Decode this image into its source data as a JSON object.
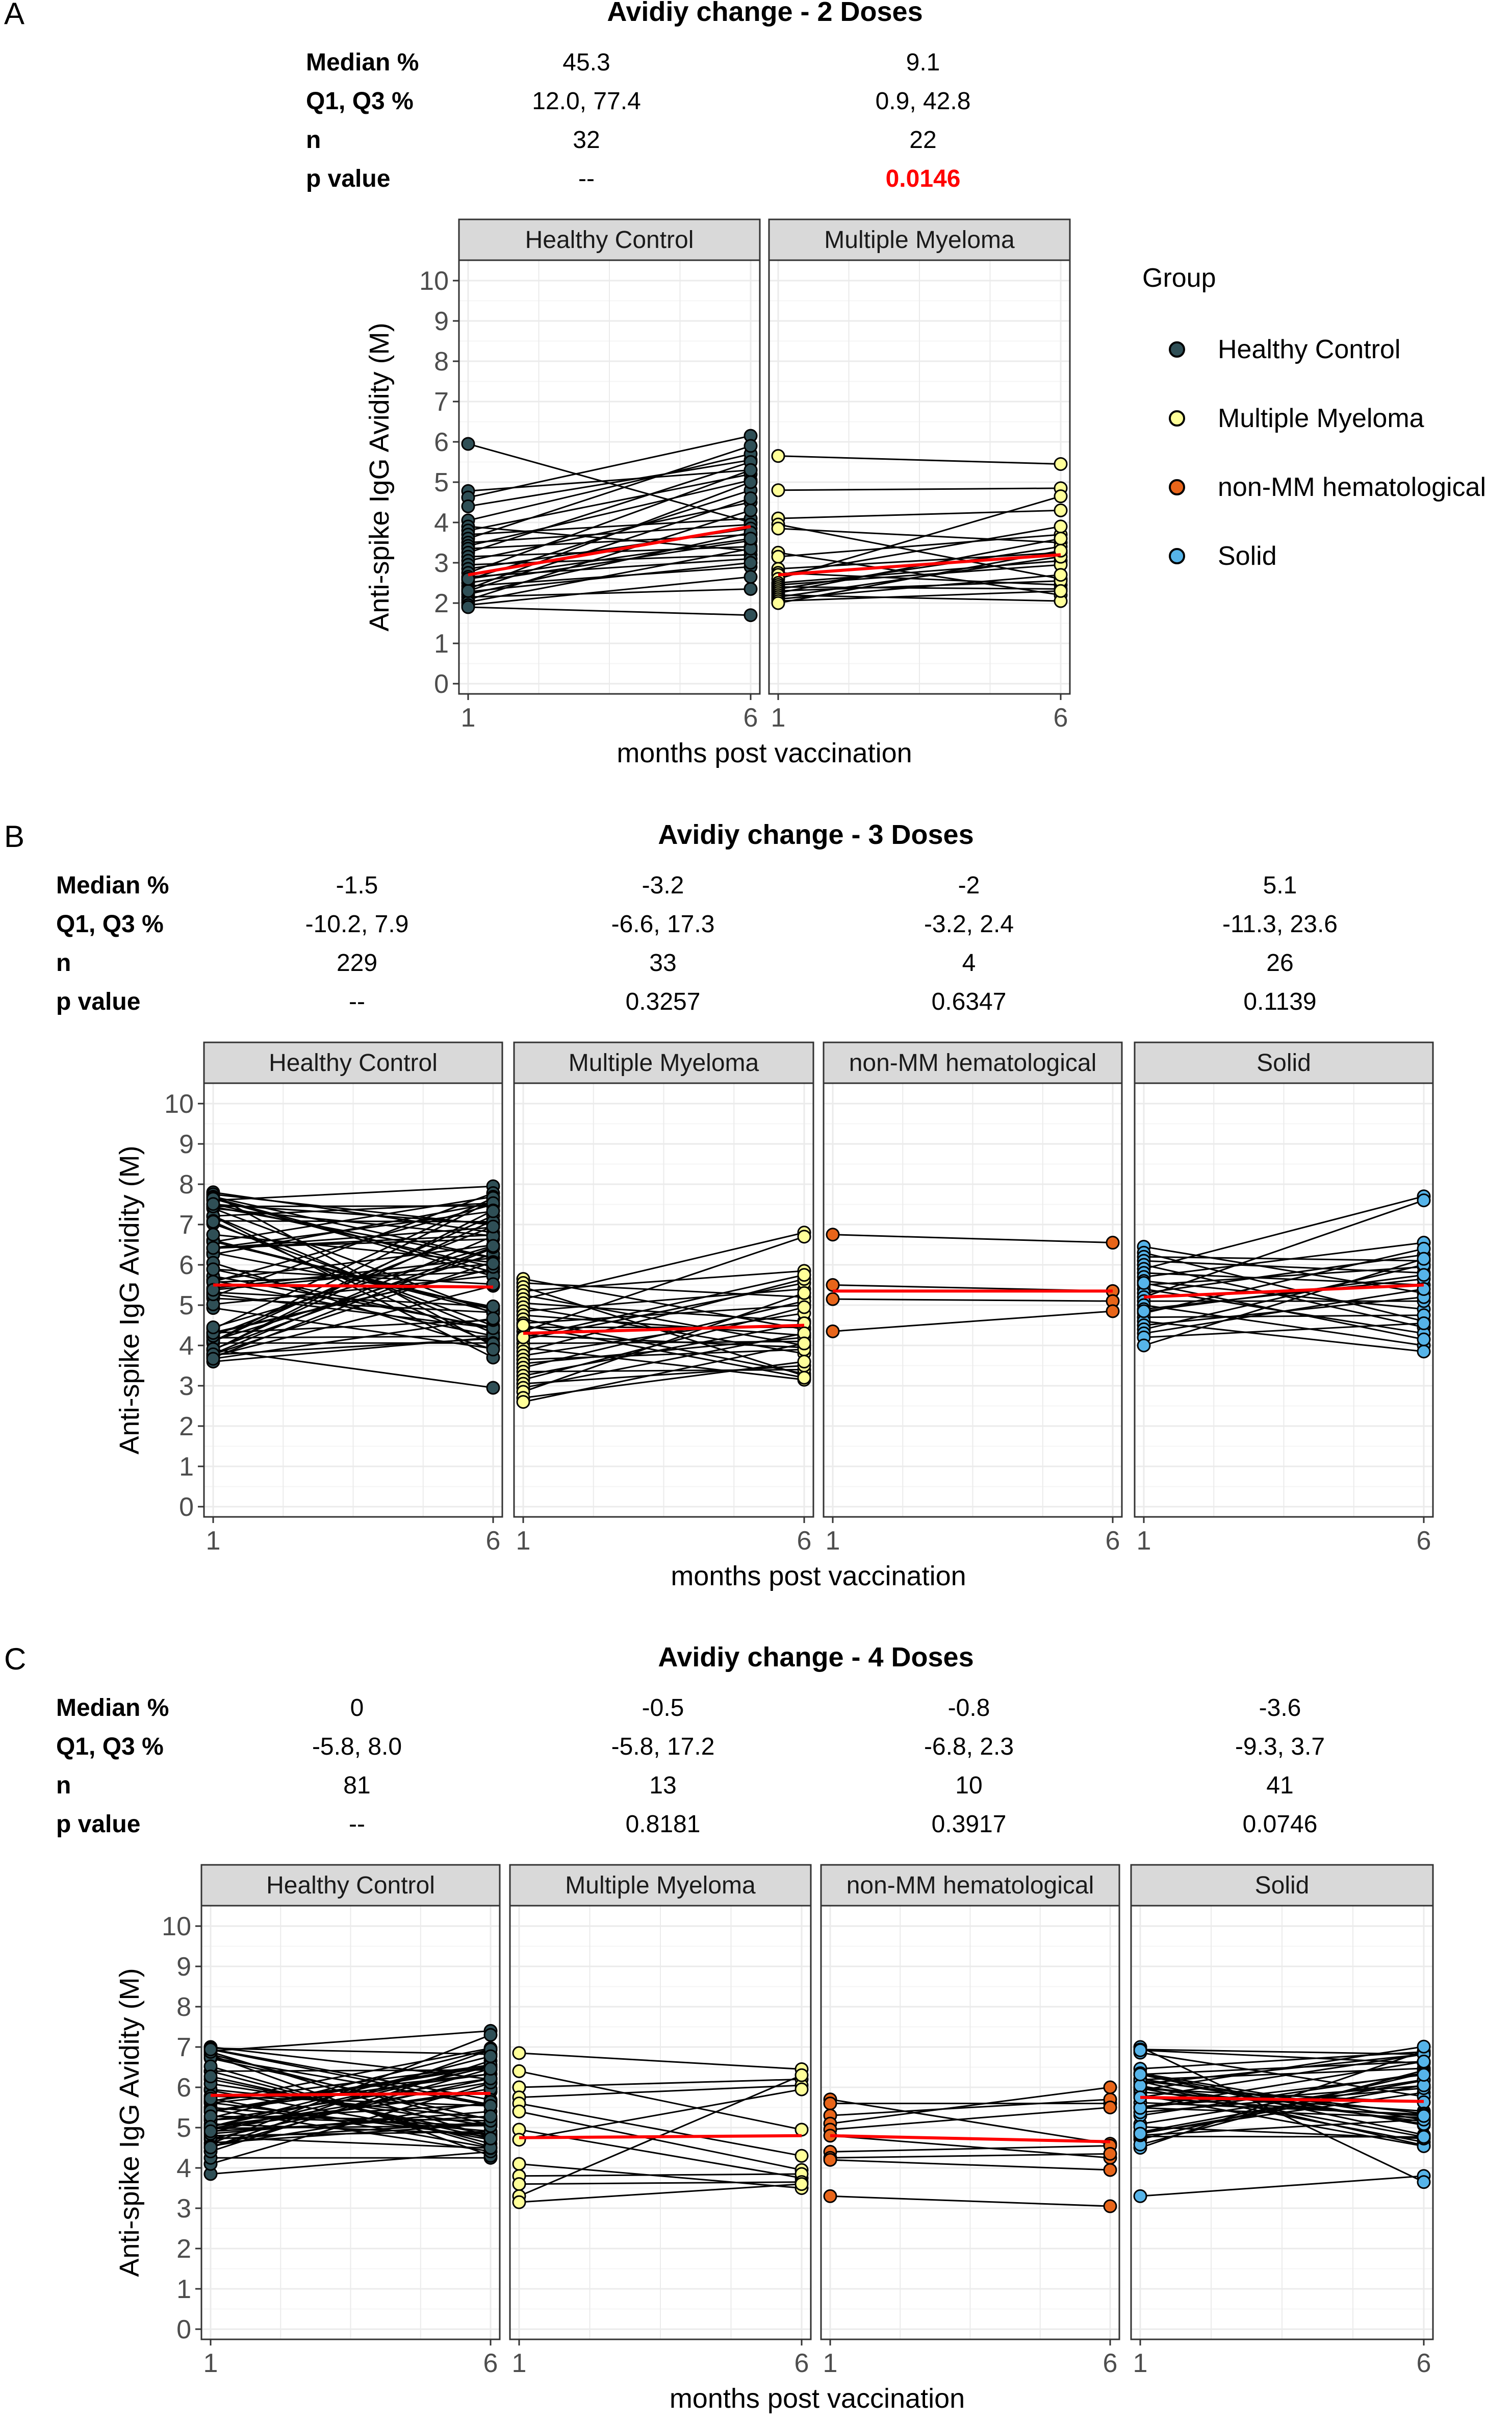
{
  "figure": {
    "legend": {
      "title": "Group",
      "items": [
        {
          "label": "Healthy Control",
          "color": "#2f4f56"
        },
        {
          "label": "Multiple Myeloma",
          "color": "#ffff99"
        },
        {
          "label": "non-MM hematological",
          "color": "#e8651a"
        },
        {
          "label": "Solid",
          "color": "#56b4e9"
        }
      ]
    },
    "table_row_labels": [
      "Median %",
      "Q1, Q3 %",
      "n",
      "p value"
    ]
  },
  "chart_data": [
    {
      "letter": "A",
      "type": "line",
      "title": "Avidiy change - 2 Doses",
      "xlabel": "months post vaccination",
      "ylabel": "Anti-spike IgG Avidity (M)",
      "x": [
        1,
        6
      ],
      "ylim": [
        0,
        10
      ],
      "yticks": [
        0,
        1,
        2,
        3,
        4,
        5,
        6,
        7,
        8,
        9,
        10
      ],
      "groups": [
        {
          "name": "Healthy Control",
          "color": "#2f4f56",
          "median": "45.3",
          "q1q3": "12.0, 77.4",
          "n": "32",
          "p": "--",
          "significant": false,
          "pairs": [
            [
              5.95,
              4.0
            ],
            [
              4.78,
              5.3
            ],
            [
              4.62,
              6.15
            ],
            [
              4.4,
              5.55
            ],
            [
              4.05,
              5.7
            ],
            [
              3.9,
              3.3
            ],
            [
              3.8,
              5.2
            ],
            [
              3.7,
              4.1
            ],
            [
              3.6,
              5.9
            ],
            [
              3.5,
              3.95
            ],
            [
              3.42,
              5.05
            ],
            [
              3.35,
              3.7
            ],
            [
              3.25,
              5.5
            ],
            [
              3.15,
              3.4
            ],
            [
              3.05,
              4.5
            ],
            [
              2.95,
              3.2
            ],
            [
              2.85,
              3.85
            ],
            [
              2.75,
              5.3
            ],
            [
              2.65,
              3.1
            ],
            [
              2.58,
              4.8
            ],
            [
              2.5,
              3.55
            ],
            [
              2.42,
              2.9
            ],
            [
              2.35,
              5.0
            ],
            [
              2.28,
              3.0
            ],
            [
              2.22,
              3.75
            ],
            [
              2.15,
              2.35
            ],
            [
              2.08,
              4.3
            ],
            [
              2.02,
              3.35
            ],
            [
              1.95,
              2.65
            ],
            [
              1.9,
              1.7
            ],
            [
              2.3,
              4.6
            ],
            [
              2.6,
              3.6
            ]
          ],
          "median_line": [
            2.7,
            3.9
          ]
        },
        {
          "name": "Multiple Myeloma",
          "color": "#ffff99",
          "median": "9.1",
          "q1q3": "0.9, 42.8",
          "n": "22",
          "p": "0.0146",
          "significant": true,
          "pairs": [
            [
              5.65,
              5.45
            ],
            [
              4.8,
              4.85
            ],
            [
              4.1,
              4.3
            ],
            [
              3.95,
              2.6
            ],
            [
              3.85,
              3.5
            ],
            [
              3.25,
              2.2
            ],
            [
              3.15,
              3.7
            ],
            [
              2.85,
              3.25
            ],
            [
              2.75,
              2.45
            ],
            [
              2.7,
              3.9
            ],
            [
              2.6,
              4.65
            ],
            [
              2.5,
              3.05
            ],
            [
              2.45,
              2.95
            ],
            [
              2.4,
              2.35
            ],
            [
              2.35,
              3.4
            ],
            [
              2.3,
              2.55
            ],
            [
              2.25,
              3.6
            ],
            [
              2.2,
              2.05
            ],
            [
              2.15,
              3.15
            ],
            [
              2.1,
              2.7
            ],
            [
              2.05,
              2.3
            ],
            [
              2.0,
              3.3
            ]
          ],
          "median_line": [
            2.7,
            3.2
          ]
        }
      ]
    },
    {
      "letter": "B",
      "type": "line",
      "title": "Avidiy change - 3 Doses",
      "xlabel": "months post vaccination",
      "ylabel": "Anti-spike IgG Avidity (M)",
      "x": [
        1,
        6
      ],
      "ylim": [
        0,
        10
      ],
      "yticks": [
        0,
        1,
        2,
        3,
        4,
        5,
        6,
        7,
        8,
        9,
        10
      ],
      "groups": [
        {
          "name": "Healthy Control",
          "color": "#2f4f56",
          "median": "-1.5",
          "q1q3": "-10.2, 7.9",
          "n": "229",
          "p": "--",
          "significant": false,
          "dense": 60,
          "low": 3.6,
          "high": 7.8,
          "low2": 2.95,
          "high2": 7.95,
          "pairs": [
            [
              7.8,
              6.8
            ],
            [
              7.6,
              7.95
            ],
            [
              7.4,
              4.8
            ],
            [
              3.6,
              4.2
            ],
            [
              3.9,
              2.95
            ],
            [
              4.1,
              7.6
            ],
            [
              4.3,
              5.9
            ],
            [
              7.2,
              3.7
            ]
          ],
          "median_line": [
            5.5,
            5.45
          ]
        },
        {
          "name": "Multiple Myeloma",
          "color": "#ffff99",
          "median": "-3.2",
          "q1q3": "-6.6, 17.3",
          "n": "33",
          "p": "0.3257",
          "significant": false,
          "pairs": [
            [
              5.65,
              4.4
            ],
            [
              5.55,
              5.2
            ],
            [
              5.45,
              3.25
            ],
            [
              5.35,
              5.85
            ],
            [
              5.25,
              4.0
            ],
            [
              5.15,
              6.8
            ],
            [
              5.05,
              4.6
            ],
            [
              4.95,
              3.8
            ],
            [
              4.85,
              5.4
            ],
            [
              4.75,
              4.25
            ],
            [
              4.65,
              3.3
            ],
            [
              4.55,
              5.0
            ],
            [
              4.45,
              4.45
            ],
            [
              4.35,
              6.7
            ],
            [
              4.25,
              3.95
            ],
            [
              4.15,
              5.55
            ],
            [
              4.05,
              4.1
            ],
            [
              3.95,
              3.15
            ],
            [
              3.85,
              5.65
            ],
            [
              3.75,
              4.8
            ],
            [
              3.65,
              3.9
            ],
            [
              3.55,
              4.2
            ],
            [
              3.45,
              5.1
            ],
            [
              3.35,
              3.4
            ],
            [
              3.25,
              4.55
            ],
            [
              3.15,
              4.95
            ],
            [
              3.05,
              3.5
            ],
            [
              2.95,
              4.3
            ],
            [
              2.85,
              5.3
            ],
            [
              2.7,
              3.6
            ],
            [
              2.6,
              4.05
            ],
            [
              4.5,
              3.2
            ],
            [
              4.2,
              5.75
            ]
          ],
          "median_line": [
            4.3,
            4.5
          ]
        },
        {
          "name": "non-MM hematological",
          "color": "#e8651a",
          "median": "-2",
          "q1q3": "-3.2, 2.4",
          "n": "4",
          "p": "0.6347",
          "significant": false,
          "pairs": [
            [
              6.75,
              6.55
            ],
            [
              5.5,
              5.35
            ],
            [
              5.15,
              5.1
            ],
            [
              4.35,
              4.85
            ]
          ],
          "median_line": [
            5.35,
            5.35
          ]
        },
        {
          "name": "Solid",
          "color": "#56b4e9",
          "median": "5.1",
          "q1q3": "-11.3, 23.6",
          "n": "26",
          "p": "0.1139",
          "significant": false,
          "pairs": [
            [
              6.45,
              5.3
            ],
            [
              6.3,
              4.6
            ],
            [
              6.2,
              6.1
            ],
            [
              6.1,
              5.8
            ],
            [
              6.0,
              4.45
            ],
            [
              5.9,
              7.7
            ],
            [
              5.8,
              5.5
            ],
            [
              5.7,
              6.55
            ],
            [
              5.6,
              4.9
            ],
            [
              5.5,
              5.95
            ],
            [
              5.4,
              4.3
            ],
            [
              5.3,
              6.25
            ],
            [
              5.2,
              7.6
            ],
            [
              5.1,
              5.1
            ],
            [
              5.0,
              4.0
            ],
            [
              4.9,
              5.65
            ],
            [
              4.8,
              6.4
            ],
            [
              4.7,
              4.75
            ],
            [
              4.6,
              3.85
            ],
            [
              4.5,
              5.2
            ],
            [
              4.4,
              6.0
            ],
            [
              4.3,
              5.4
            ],
            [
              4.2,
              4.55
            ],
            [
              4.0,
              6.15
            ],
            [
              5.55,
              4.15
            ],
            [
              4.85,
              5.75
            ]
          ],
          "median_line": [
            5.2,
            5.5
          ]
        }
      ]
    },
    {
      "letter": "C",
      "type": "line",
      "title": "Avidiy change - 4 Doses",
      "xlabel": "months post vaccination",
      "ylabel": "Anti-spike IgG Avidity (M)",
      "x": [
        1,
        6
      ],
      "ylim": [
        0,
        10
      ],
      "yticks": [
        0,
        1,
        2,
        3,
        4,
        5,
        6,
        7,
        8,
        9,
        10
      ],
      "groups": [
        {
          "name": "Healthy Control",
          "color": "#2f4f56",
          "median": "0",
          "q1q3": "-5.8, 8.0",
          "n": "81",
          "p": "--",
          "significant": false,
          "dense": 50,
          "low": 4.4,
          "high": 7.0,
          "low2": 4.2,
          "high2": 7.4,
          "pairs": [
            [
              7.0,
              6.2
            ],
            [
              6.9,
              7.4
            ],
            [
              3.85,
              4.4
            ],
            [
              4.1,
              6.1
            ],
            [
              4.25,
              4.25
            ],
            [
              6.8,
              4.3
            ],
            [
              4.6,
              7.3
            ]
          ],
          "median_line": [
            5.8,
            5.85
          ]
        },
        {
          "name": "Multiple Myeloma",
          "color": "#ffff99",
          "median": "-0.5",
          "q1q3": "-5.8, 17.2",
          "n": "13",
          "p": "0.8181",
          "significant": false,
          "pairs": [
            [
              6.85,
              6.45
            ],
            [
              6.4,
              4.95
            ],
            [
              6.0,
              6.2
            ],
            [
              5.75,
              6.05
            ],
            [
              5.6,
              4.3
            ],
            [
              5.4,
              3.95
            ],
            [
              4.95,
              3.75
            ],
            [
              4.7,
              5.95
            ],
            [
              4.1,
              3.5
            ],
            [
              3.8,
              3.85
            ],
            [
              3.6,
              3.65
            ],
            [
              3.3,
              6.3
            ],
            [
              3.15,
              3.6
            ]
          ],
          "median_line": [
            4.75,
            4.8
          ]
        },
        {
          "name": "non-MM hematological",
          "color": "#e8651a",
          "median": "-0.8",
          "q1q3": "-6.8, 2.3",
          "n": "10",
          "p": "0.3917",
          "significant": false,
          "pairs": [
            [
              5.7,
              4.6
            ],
            [
              5.6,
              5.6
            ],
            [
              5.3,
              5.7
            ],
            [
              5.1,
              6.0
            ],
            [
              4.95,
              5.5
            ],
            [
              4.8,
              4.25
            ],
            [
              4.4,
              4.55
            ],
            [
              4.25,
              4.35
            ],
            [
              4.2,
              3.95
            ],
            [
              3.3,
              3.05
            ]
          ],
          "median_line": [
            4.8,
            4.65
          ]
        },
        {
          "name": "Solid",
          "color": "#56b4e9",
          "median": "-3.6",
          "q1q3": "-9.3, 3.7",
          "n": "41",
          "p": "0.0746",
          "significant": false,
          "dense": 38,
          "low": 4.5,
          "high": 7.1,
          "low2": 3.6,
          "high2": 7.1,
          "pairs": [
            [
              3.3,
              3.8
            ],
            [
              7.0,
              3.65
            ],
            [
              4.5,
              6.9
            ]
          ],
          "median_line": [
            5.75,
            5.65
          ]
        }
      ]
    }
  ]
}
